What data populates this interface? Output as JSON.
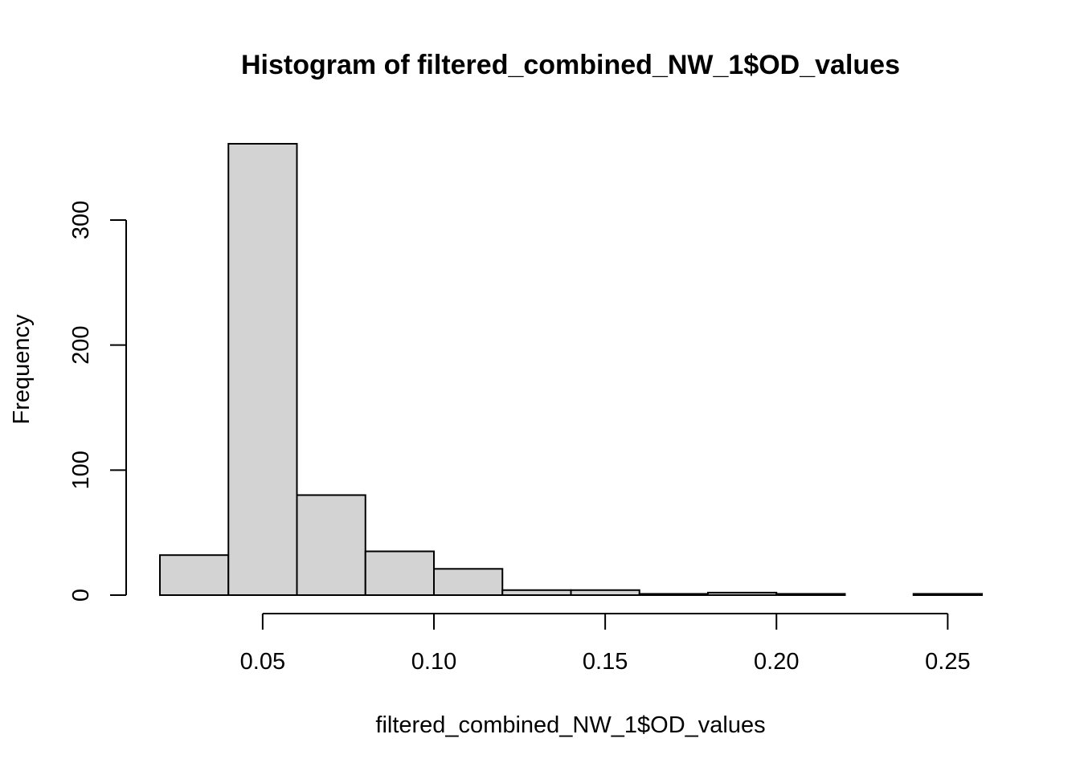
{
  "chart_data": {
    "type": "bar",
    "title": "Histogram of filtered_combined_NW_1$OD_values",
    "xlabel": "filtered_combined_NW_1$OD_values",
    "ylabel": "Frequency",
    "bins": [
      {
        "start": 0.02,
        "end": 0.04,
        "count": 32
      },
      {
        "start": 0.04,
        "end": 0.06,
        "count": 361
      },
      {
        "start": 0.06,
        "end": 0.08,
        "count": 80
      },
      {
        "start": 0.08,
        "end": 0.1,
        "count": 35
      },
      {
        "start": 0.1,
        "end": 0.12,
        "count": 21
      },
      {
        "start": 0.12,
        "end": 0.14,
        "count": 4
      },
      {
        "start": 0.14,
        "end": 0.16,
        "count": 4
      },
      {
        "start": 0.16,
        "end": 0.18,
        "count": 1
      },
      {
        "start": 0.18,
        "end": 0.2,
        "count": 2
      },
      {
        "start": 0.2,
        "end": 0.22,
        "count": 1
      },
      {
        "start": 0.22,
        "end": 0.24,
        "count": 0
      },
      {
        "start": 0.24,
        "end": 0.26,
        "count": 1
      }
    ],
    "x_ticks": [
      {
        "value": 0.05,
        "label": "0.05"
      },
      {
        "value": 0.1,
        "label": "0.10"
      },
      {
        "value": 0.15,
        "label": "0.15"
      },
      {
        "value": 0.2,
        "label": "0.20"
      },
      {
        "value": 0.25,
        "label": "0.25"
      }
    ],
    "y_ticks": [
      {
        "value": 0,
        "label": "0"
      },
      {
        "value": 100,
        "label": "100"
      },
      {
        "value": 200,
        "label": "200"
      },
      {
        "value": 300,
        "label": "300"
      }
    ],
    "xlim": [
      0.02,
      0.26
    ],
    "ylim": [
      0,
      361
    ],
    "grid": false,
    "legend": "none",
    "colors": {
      "bar_fill": "#d3d3d3",
      "bar_stroke": "#000000"
    }
  }
}
